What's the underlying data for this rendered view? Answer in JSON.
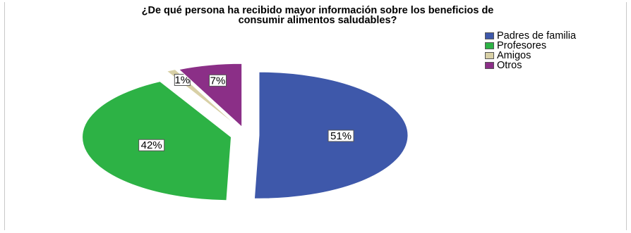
{
  "chart_data": {
    "type": "pie",
    "title_lines": [
      "¿De qué persona ha recibido mayor información sobre los beneficios de",
      "consumir alimentos saludables?"
    ],
    "categories": [
      "Padres de familia",
      "Profesores",
      "Amigos",
      "Otros"
    ],
    "values": [
      51,
      42,
      1,
      7
    ],
    "labels": [
      "51%",
      "42%",
      "1%",
      "7%"
    ],
    "colors": [
      "#3e58aa",
      "#2db245",
      "#d8d0a6",
      "#8b2f87"
    ],
    "legend_position": "top-right",
    "exploded": true
  }
}
